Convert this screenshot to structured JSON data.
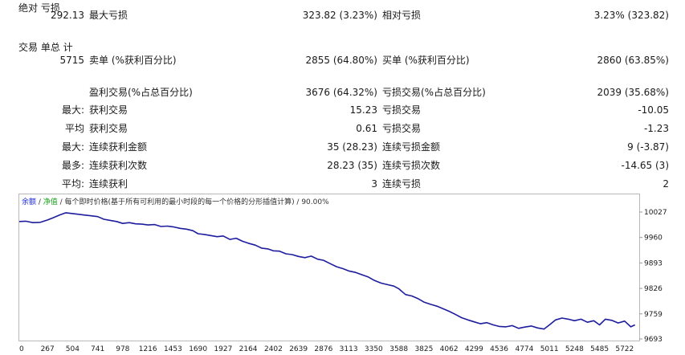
{
  "stats": {
    "absolute_drawdown": {
      "label": "绝对\n亏损",
      "value": "292.13"
    },
    "max_drawdown": {
      "label": "最大亏损",
      "value": "323.82 (3.23%)"
    },
    "relative_drawdown": {
      "label": "相对亏损",
      "value": "3.23% (323.82)"
    },
    "total_trades": {
      "label": "交易\n单总\n计",
      "value": "5715"
    },
    "short_trades": {
      "label": "卖单 (%获利百分比)",
      "value": "2855 (64.80%)"
    },
    "long_trades": {
      "label": "买单 (%获利百分比)",
      "value": "2860 (63.85%)"
    },
    "profit_trades": {
      "label": "盈利交易(%占总百分比)",
      "value": "3676 (64.32%)"
    },
    "loss_trades": {
      "label": "亏损交易(%占总百分比)",
      "value": "2039 (35.68%)"
    },
    "largest_profit": {
      "prefix": "最大:",
      "label": "获利交易",
      "value": "15.23"
    },
    "largest_loss": {
      "label": "亏损交易",
      "value": "-10.05"
    },
    "average_profit": {
      "prefix": "平均",
      "label": "获利交易",
      "value": "0.61"
    },
    "average_loss": {
      "label": "亏损交易",
      "value": "-1.23"
    },
    "max_consec_wins": {
      "prefix": "最大:",
      "label": "连续获利金额",
      "value": "35 (28.23)"
    },
    "max_consec_losses": {
      "label": "连续亏损金额",
      "value": "9 (-3.87)"
    },
    "maximal_consec_profit": {
      "prefix": "最多:",
      "label": "连续获利次数",
      "value": "28.23 (35)"
    },
    "maximal_consec_loss": {
      "label": "连续亏损次数",
      "value": "-14.65 (3)"
    },
    "avg_consec_wins": {
      "prefix": "平均:",
      "label": "连续获利",
      "value": "3"
    },
    "avg_consec_losses": {
      "label": "连续亏损",
      "value": "2"
    }
  },
  "legend": {
    "balance": "余额",
    "sep1": " / ",
    "equity": "净值",
    "text": " / 每个即时价格(基于所有可利用的最小时段的每一个价格的分形插值计算) / 90.00%"
  },
  "chart_data": {
    "type": "line",
    "title": "",
    "xlabel": "",
    "ylabel": "",
    "y_ticks": [
      "10027",
      "9960",
      "9893",
      "9826",
      "9759",
      "9693"
    ],
    "x_ticks": [
      "0",
      "267",
      "504",
      "741",
      "978",
      "1216",
      "1453",
      "1690",
      "1927",
      "2164",
      "2402",
      "2639",
      "2876",
      "3113",
      "3350",
      "3588",
      "3825",
      "4062",
      "4299",
      "4536",
      "4774",
      "5011",
      "5248",
      "5485",
      "5722"
    ],
    "xlim": [
      0,
      5860
    ],
    "ylim": [
      9693,
      10027
    ],
    "series": [
      {
        "color": "#1d1d9e",
        "x": [
          0,
          60,
          130,
          200,
          267,
          320,
          380,
          440,
          504,
          560,
          620,
          680,
          741,
          800,
          860,
          920,
          978,
          1040,
          1100,
          1160,
          1216,
          1280,
          1340,
          1400,
          1453,
          1520,
          1580,
          1640,
          1690,
          1750,
          1810,
          1870,
          1927,
          1990,
          2050,
          2110,
          2164,
          2230,
          2290,
          2350,
          2402,
          2460,
          2520,
          2580,
          2639,
          2700,
          2760,
          2820,
          2876,
          2940,
          3000,
          3060,
          3113,
          3180,
          3240,
          3300,
          3350,
          3420,
          3480,
          3540,
          3588,
          3650,
          3710,
          3770,
          3825,
          3890,
          3950,
          4010,
          4062,
          4120,
          4180,
          4240,
          4299,
          4360,
          4420,
          4480,
          4536,
          4600,
          4660,
          4720,
          4774,
          4840,
          4900,
          4960,
          5011,
          5070,
          5130,
          5190,
          5248,
          5310,
          5370,
          5430,
          5485,
          5540,
          5600,
          5660,
          5722,
          5780,
          5820
        ],
        "y": [
          10002,
          10003,
          9999,
          10000,
          10006,
          10012,
          10019,
          10025,
          10023,
          10021,
          10019,
          10017,
          10015,
          10008,
          10005,
          10002,
          9997,
          9999,
          9996,
          9995,
          9993,
          9994,
          9989,
          9990,
          9988,
          9984,
          9982,
          9978,
          9970,
          9968,
          9965,
          9962,
          9964,
          9955,
          9958,
          9950,
          9945,
          9940,
          9932,
          9930,
          9925,
          9924,
          9917,
          9915,
          9910,
          9907,
          9911,
          9903,
          9900,
          9891,
          9883,
          9878,
          9872,
          9868,
          9862,
          9856,
          9848,
          9840,
          9836,
          9832,
          9825,
          9810,
          9806,
          9799,
          9790,
          9784,
          9779,
          9772,
          9766,
          9758,
          9749,
          9743,
          9738,
          9733,
          9736,
          9730,
          9726,
          9725,
          9728,
          9721,
          9724,
          9727,
          9722,
          9719,
          9730,
          9743,
          9748,
          9745,
          9741,
          9745,
          9737,
          9741,
          9730,
          9745,
          9742,
          9735,
          9740,
          9725,
          9730
        ]
      }
    ]
  }
}
